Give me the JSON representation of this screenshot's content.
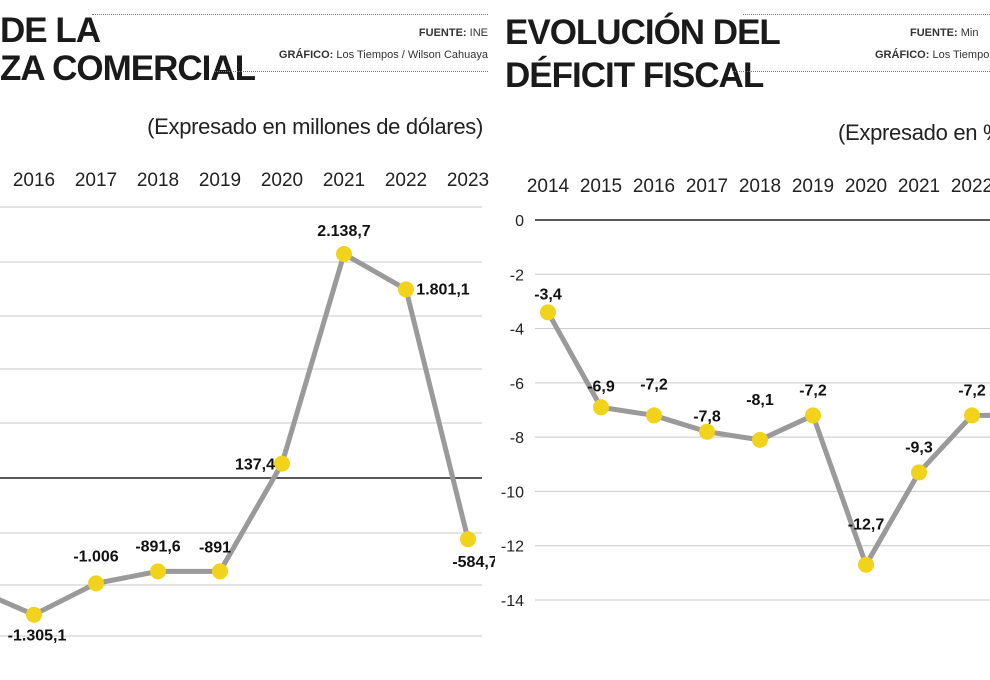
{
  "colors": {
    "line": "#9a9a9a",
    "marker": "#f2d31b",
    "grid": "#c8c8c8",
    "zero_line": "#222222"
  },
  "charts": [
    {
      "title_lines": [
        "DE LA",
        "ZA COMERCIAL"
      ],
      "source_label": "FUENTE:",
      "source_value": "INE",
      "graphic_label": "GRÁFICO:",
      "graphic_value": "Los Tiempos / Wilson Cahuaya",
      "subtitle": "(Expresado en millones de dólares)"
    },
    {
      "title_lines": [
        "EVOLUCIÓN DEL",
        "DÉFICIT FISCAL"
      ],
      "source_label": "FUENTE:",
      "source_value": "Min",
      "graphic_label": "GRÁFICO:",
      "graphic_value": "Los Tiempo",
      "subtitle": "(Expresado en %"
    }
  ],
  "chart_data": [
    {
      "type": "line",
      "title": "DE LA ZA COMERCIAL",
      "subtitle": "(Expresado en millones de dólares)",
      "x": [
        "2016",
        "2017",
        "2018",
        "2019",
        "2020",
        "2021",
        "2022",
        "2023"
      ],
      "series": [
        {
          "values": [
            -1305.1,
            -1006,
            -891.6,
            -891,
            137.4,
            2138.7,
            1801.1,
            -584.7
          ],
          "labels": [
            "-1.305,1",
            "-1.006",
            "-891,6",
            "-891",
            "137,4",
            "2.138,7",
            "1.801,1",
            "-584,7"
          ]
        }
      ],
      "grid": true
    },
    {
      "type": "line",
      "title": "EVOLUCIÓN DEL DÉFICIT FISCAL",
      "subtitle": "(Expresado en %",
      "x": [
        "2014",
        "2015",
        "2016",
        "2017",
        "2018",
        "2019",
        "2020",
        "2021",
        "2022"
      ],
      "series": [
        {
          "values": [
            -3.4,
            -6.9,
            -7.2,
            -7.8,
            -8.1,
            -7.2,
            -12.7,
            -9.3,
            -7.2
          ],
          "labels": [
            "-3,4",
            "-6,9",
            "-7,2",
            "-7,8",
            "-8,1",
            "-7,2",
            "-12,7",
            "-9,3",
            "-7,2"
          ]
        }
      ],
      "y_ticks": [
        "0",
        "-2",
        "-4",
        "-6",
        "-8",
        "-10",
        "-12",
        "-14"
      ],
      "ylim": [
        -14,
        0
      ],
      "grid": true
    }
  ]
}
